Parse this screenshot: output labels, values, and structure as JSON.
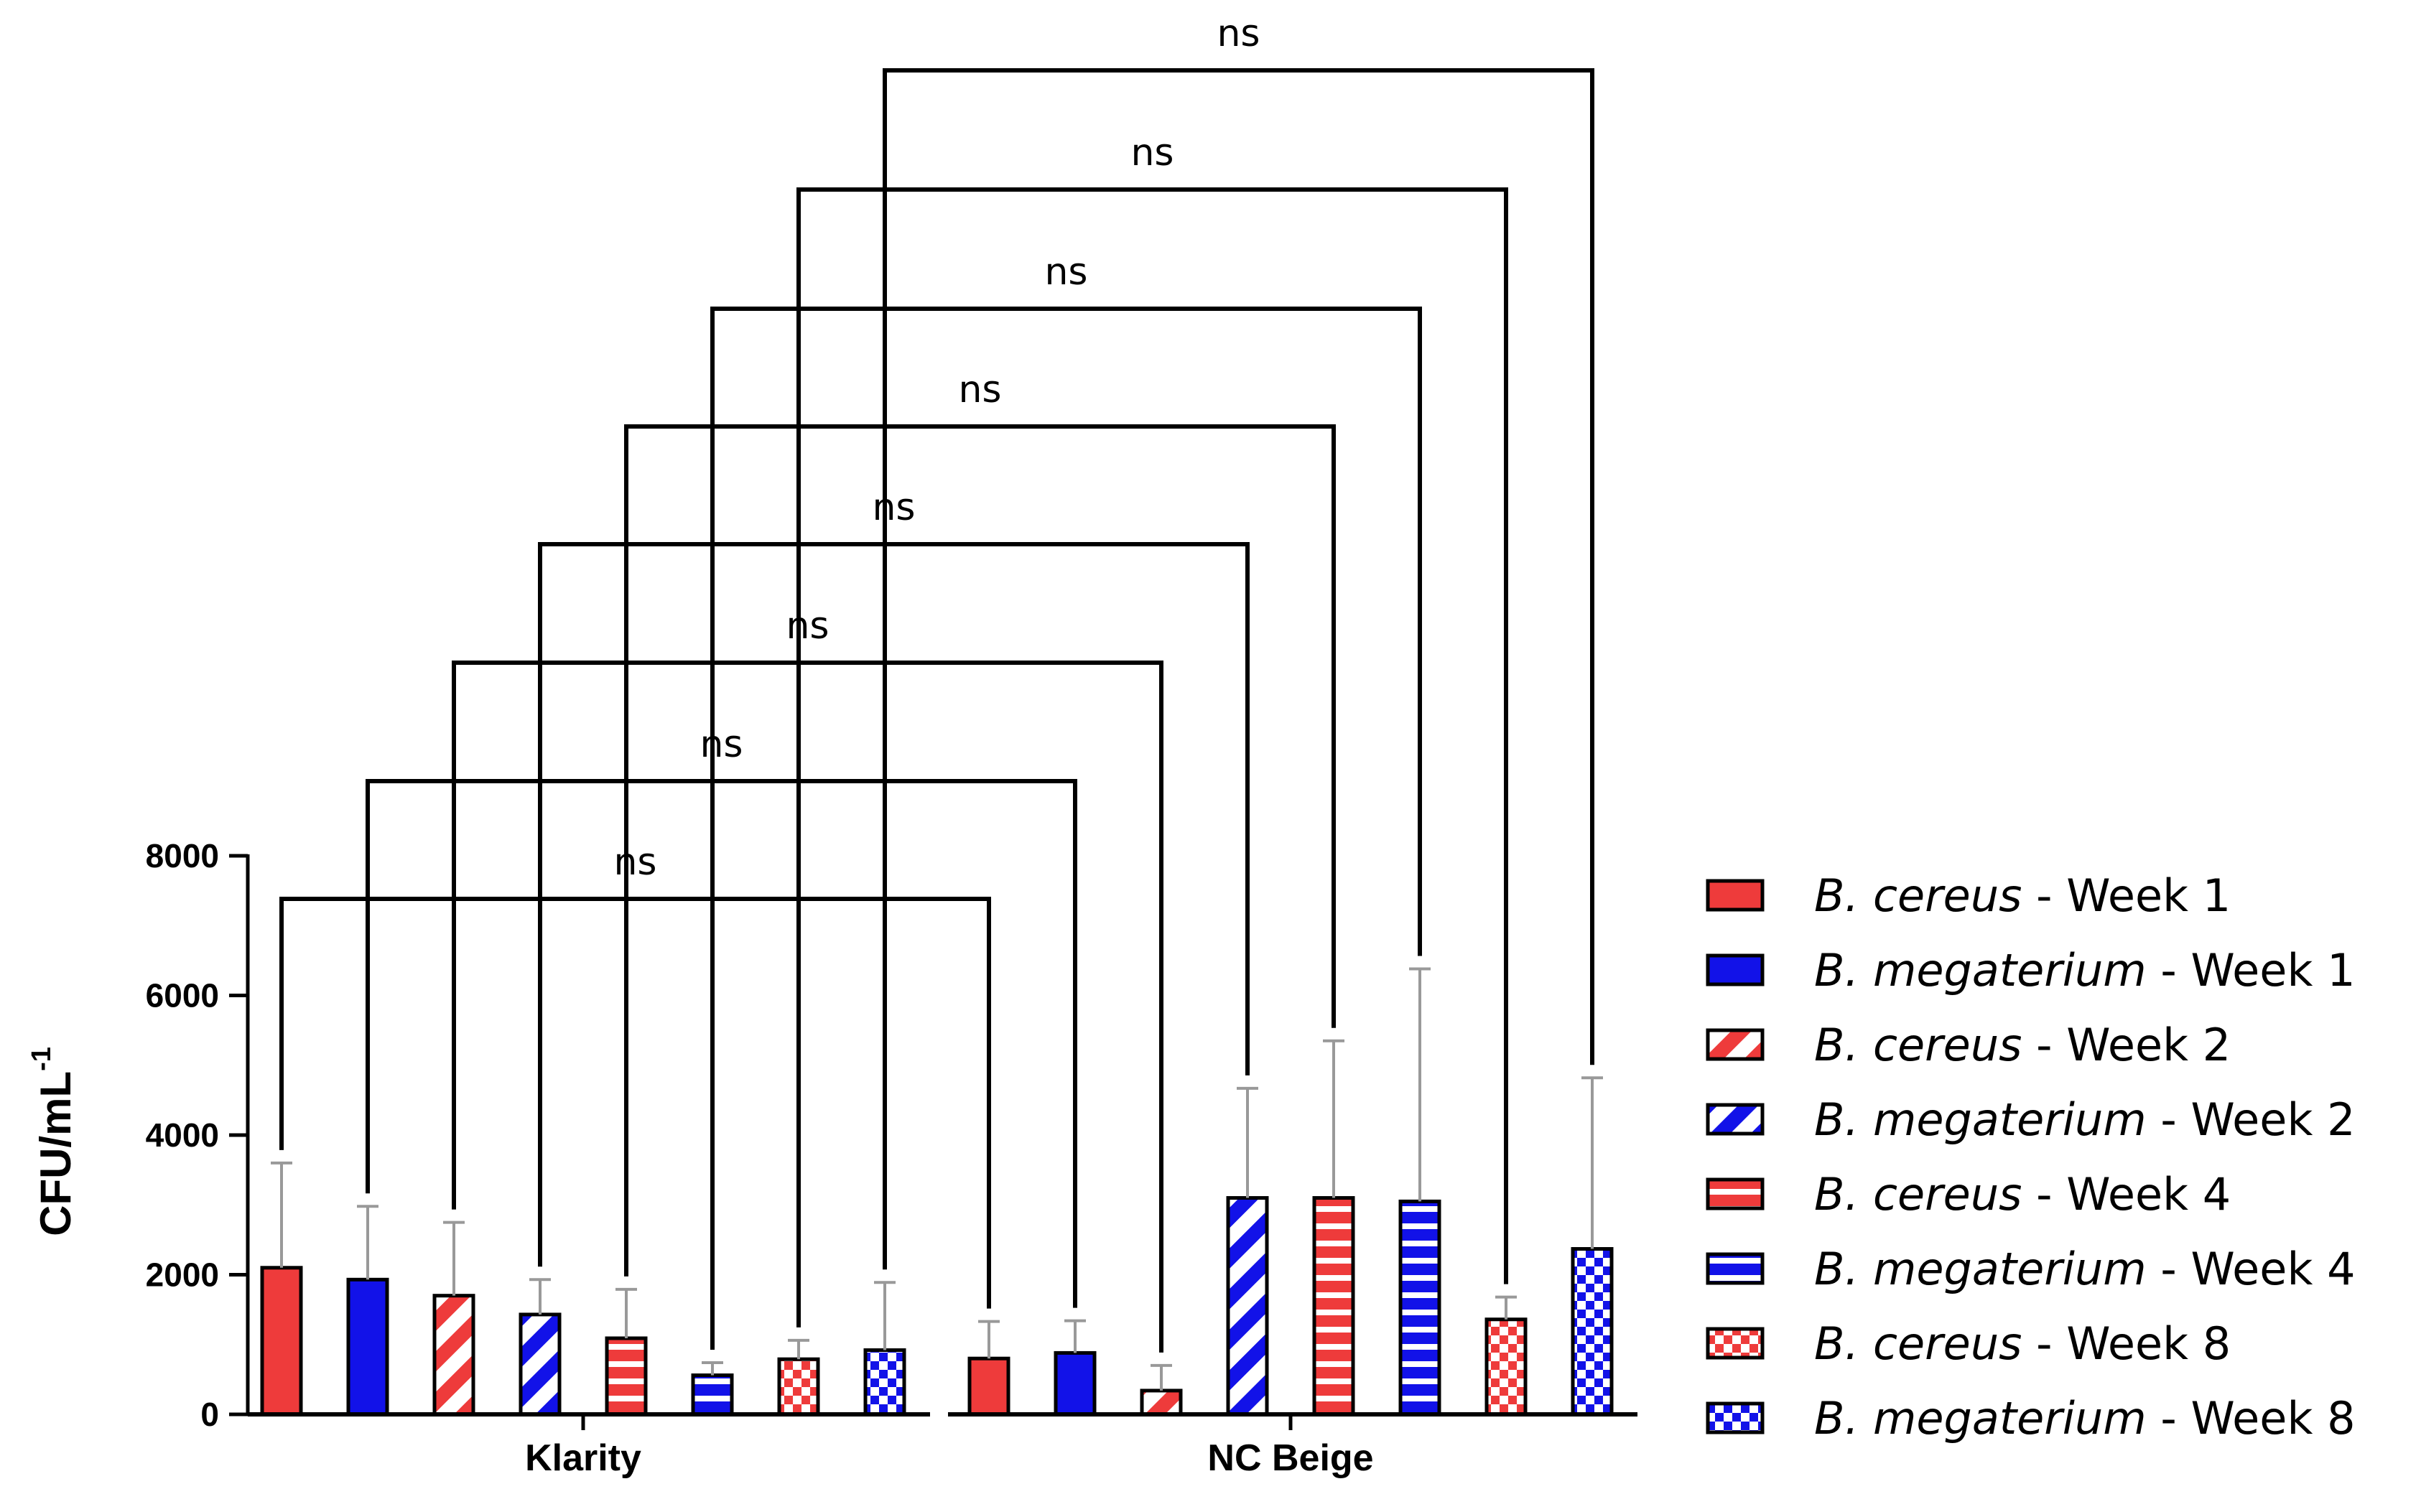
{
  "chart_data": {
    "type": "bar",
    "ylabel": "CFU/mL",
    "ylabel_superscript": "-1",
    "ylim": [
      0,
      8000
    ],
    "yticks": [
      "0",
      "2000",
      "4000",
      "6000",
      "8000"
    ],
    "groups": [
      "Klarity",
      "NC Beige"
    ],
    "colors": {
      "cereus": "#ee3b3b",
      "megaterium": "#1212e8"
    },
    "series": [
      {
        "species": "B. cereus",
        "suffix": " - Week 1",
        "color_key": "cereus",
        "pattern": "solid",
        "values": [
          2100,
          800
        ],
        "errors": [
          1500,
          530
        ]
      },
      {
        "species": "B. megaterium",
        "suffix": " - Week 1",
        "color_key": "megaterium",
        "pattern": "solid",
        "values": [
          1930,
          880
        ],
        "errors": [
          1050,
          460
        ]
      },
      {
        "species": "B. cereus",
        "suffix": " - Week 2",
        "color_key": "cereus",
        "pattern": "diagonal",
        "values": [
          1700,
          340
        ],
        "errors": [
          1050,
          360
        ]
      },
      {
        "species": "B. megaterium",
        "suffix": " - Week 2",
        "color_key": "megaterium",
        "pattern": "diagonal",
        "values": [
          1430,
          3100
        ],
        "errors": [
          500,
          1570
        ]
      },
      {
        "species": "B. cereus",
        "suffix": " - Week 4",
        "color_key": "cereus",
        "pattern": "horizontal",
        "values": [
          1090,
          3100
        ],
        "errors": [
          700,
          2250
        ]
      },
      {
        "species": "B. megaterium",
        "suffix": " - Week 4",
        "color_key": "megaterium",
        "pattern": "horizontal",
        "values": [
          560,
          3050
        ],
        "errors": [
          180,
          3330
        ]
      },
      {
        "species": "B. cereus",
        "suffix": " - Week 8",
        "color_key": "cereus",
        "pattern": "checker",
        "values": [
          790,
          1360
        ],
        "errors": [
          270,
          320
        ]
      },
      {
        "species": "B. megaterium",
        "suffix": " - Week 8",
        "color_key": "megaterium",
        "pattern": "checker",
        "values": [
          920,
          2370
        ],
        "errors": [
          970,
          2450
        ]
      }
    ],
    "comparisons": [
      {
        "label": "ns",
        "series": 0
      },
      {
        "label": "ns",
        "series": 1
      },
      {
        "label": "ns",
        "series": 2
      },
      {
        "label": "ns",
        "series": 3
      },
      {
        "label": "ns",
        "series": 4
      },
      {
        "label": "ns",
        "series": 5
      },
      {
        "label": "ns",
        "series": 6
      },
      {
        "label": "ns",
        "series": 7
      }
    ]
  }
}
